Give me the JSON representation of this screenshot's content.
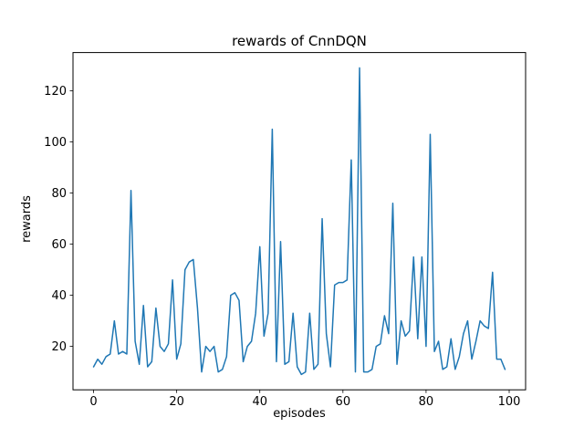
{
  "chart_data": {
    "type": "line",
    "title": "rewards of CnnDQN",
    "xlabel": "episodes",
    "ylabel": "rewards",
    "line_color": "#1f77b4",
    "line_width": 1.5,
    "xlim": [
      -4.95,
      103.95
    ],
    "ylim": [
      3.0,
      135.0
    ],
    "xticks": [
      0,
      20,
      40,
      60,
      80,
      100
    ],
    "yticks": [
      20,
      40,
      60,
      80,
      100,
      120
    ],
    "x_start": 0,
    "x_step": 1,
    "values": [
      12,
      15,
      13,
      16,
      17,
      30,
      17,
      18,
      17,
      81,
      22,
      13,
      36,
      12,
      14,
      35,
      20,
      18,
      21,
      46,
      15,
      21,
      50,
      53,
      54,
      35,
      10,
      20,
      18,
      20,
      10,
      11,
      16,
      40,
      41,
      38,
      14,
      20,
      22,
      33,
      59,
      24,
      33,
      105,
      14,
      61,
      13,
      14,
      33,
      12,
      9,
      10,
      33,
      11,
      13,
      70,
      25,
      12,
      44,
      45,
      45,
      46,
      93,
      10,
      129,
      10,
      10,
      11,
      20,
      21,
      32,
      25,
      76,
      13,
      30,
      24,
      26,
      55,
      23,
      55,
      20,
      103,
      18,
      22,
      11,
      12,
      23,
      11,
      16,
      25,
      30,
      15,
      22,
      30,
      28,
      27,
      49,
      15,
      15,
      11
    ]
  }
}
